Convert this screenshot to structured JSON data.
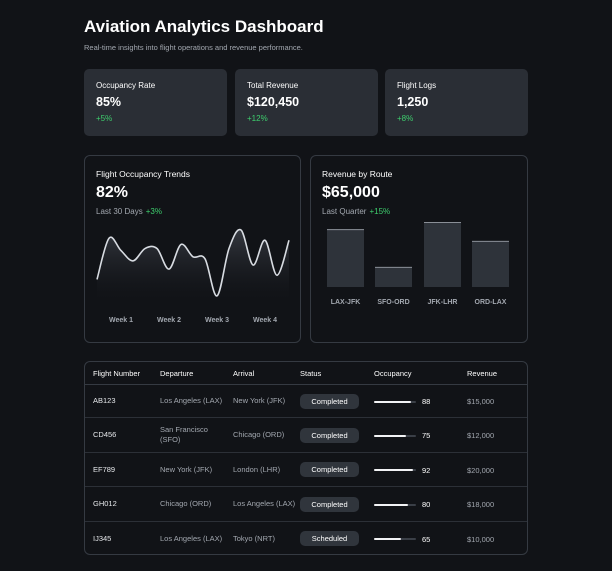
{
  "header": {
    "title": "Aviation Analytics Dashboard",
    "subtitle": "Real-time insights into flight operations and revenue performance."
  },
  "kpis": [
    {
      "label": "Occupancy Rate",
      "value": "85%",
      "change": "+5%"
    },
    {
      "label": "Total Revenue",
      "value": "$120,450",
      "change": "+12%"
    },
    {
      "label": "Flight Logs",
      "value": "1,250",
      "change": "+8%"
    }
  ],
  "chart_data": [
    {
      "type": "line",
      "title": "Flight Occupancy Trends",
      "headline": "82%",
      "subtitle": "Last 30 Days",
      "change": "+3%",
      "categories": [
        null,
        null,
        "Week 1",
        null,
        null,
        null,
        "Week 2",
        null,
        null,
        null,
        "Week 3",
        null,
        null,
        null,
        "Week 4",
        null,
        null
      ],
      "values": [
        20,
        60,
        48,
        38,
        50,
        50,
        30,
        54,
        42,
        40,
        4,
        50,
        68,
        34,
        58,
        24,
        58
      ],
      "color": "#d8dce2"
    },
    {
      "type": "bar",
      "title": "Revenue by Route",
      "headline": "$65,000",
      "subtitle": "Last Quarter",
      "change": "+15%",
      "categories": [
        "LAX-JFK",
        "SFO-ORD",
        "JFK-LHR",
        "ORD-LAX"
      ],
      "values": [
        89,
        31,
        100,
        71
      ],
      "color": "#2e333a"
    }
  ],
  "table": {
    "headers": [
      "Flight Number",
      "Departure",
      "Arrival",
      "Status",
      "Occupancy",
      "Revenue"
    ],
    "rows": [
      {
        "flight": "AB123",
        "departure": "Los Angeles (LAX)",
        "arrival": "New York (JFK)",
        "status": "Completed",
        "occupancy": 88,
        "revenue": "$15,000"
      },
      {
        "flight": "CD456",
        "departure": "San Francisco (SFO)",
        "arrival": "Chicago (ORD)",
        "status": "Completed",
        "occupancy": 75,
        "revenue": "$12,000"
      },
      {
        "flight": "EF789",
        "departure": "New York (JFK)",
        "arrival": "London (LHR)",
        "status": "Completed",
        "occupancy": 92,
        "revenue": "$20,000"
      },
      {
        "flight": "GH012",
        "departure": "Chicago (ORD)",
        "arrival": "Los Angeles (LAX)",
        "status": "Completed",
        "occupancy": 80,
        "revenue": "$18,000"
      },
      {
        "flight": "IJ345",
        "departure": "Los Angeles (LAX)",
        "arrival": "Tokyo (NRT)",
        "status": "Scheduled",
        "occupancy": 65,
        "revenue": "$10,000"
      }
    ]
  }
}
